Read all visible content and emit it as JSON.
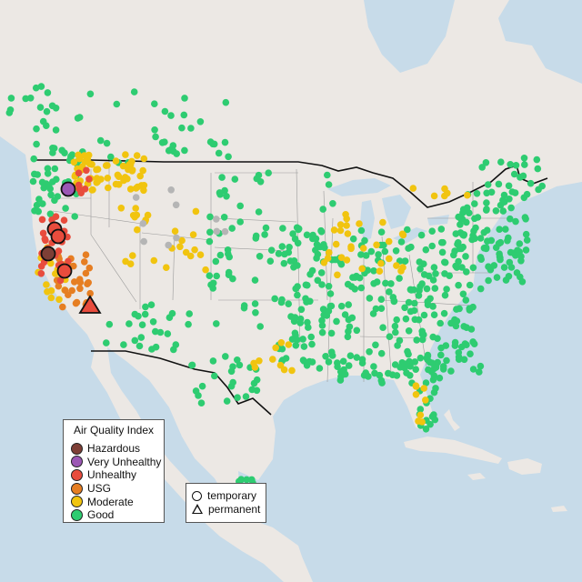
{
  "map": {
    "colors": {
      "water": "#c7dbe9",
      "land": "#ece8e4",
      "border": "#111111",
      "state_line": "#9a9a9a",
      "hazardous": "#7e3f36",
      "very_unhealthy": "#9b57b4",
      "unhealthy": "#e84c3d",
      "usg": "#e67e22",
      "moderate": "#f1c40f",
      "good": "#2ecc71",
      "nodata": "#b5b5b5"
    }
  },
  "aqi_legend": {
    "title": "Air Quality Index",
    "items": [
      {
        "label": "Hazardous",
        "color": "#7e3f36"
      },
      {
        "label": "Very Unhealthy",
        "color": "#9b57b4"
      },
      {
        "label": "Unhealthy",
        "color": "#e84c3d"
      },
      {
        "label": "USG",
        "color": "#e67e22"
      },
      {
        "label": "Moderate",
        "color": "#f1c40f"
      },
      {
        "label": "Good",
        "color": "#2ecc71"
      }
    ]
  },
  "shape_legend": {
    "items": [
      {
        "label": "temporary",
        "shape": "circle"
      },
      {
        "label": "permanent",
        "shape": "triangle"
      }
    ]
  }
}
